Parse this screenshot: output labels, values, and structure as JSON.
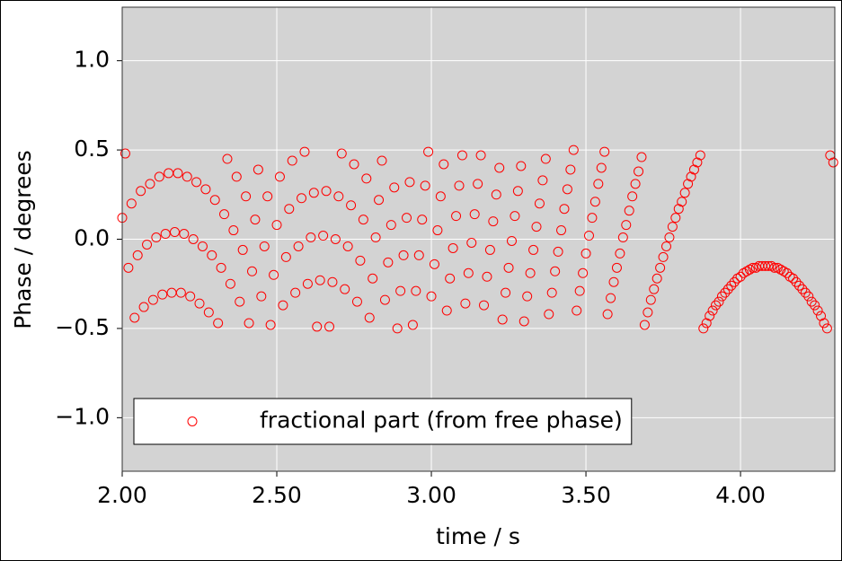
{
  "chart_data": {
    "type": "scatter",
    "xlabel": "time / s",
    "ylabel": "Phase / degrees",
    "x": [
      2,
      2.01,
      2.02,
      2.03,
      2.04,
      2.05,
      2.06,
      2.07,
      2.08,
      2.09,
      2.1,
      2.11,
      2.12,
      2.13,
      2.14,
      2.15,
      2.16,
      2.17,
      2.18,
      2.19,
      2.2,
      2.21,
      2.22,
      2.23,
      2.24,
      2.25,
      2.26,
      2.27,
      2.28,
      2.29,
      2.3,
      2.31,
      2.32,
      2.33,
      2.34,
      2.35,
      2.36,
      2.37,
      2.38,
      2.39,
      2.4,
      2.41,
      2.42,
      2.43,
      2.44,
      2.45,
      2.46,
      2.47,
      2.48,
      2.49,
      2.5,
      2.51,
      2.52,
      2.53,
      2.54,
      2.55,
      2.56,
      2.57,
      2.58,
      2.59,
      2.6,
      2.61,
      2.62,
      2.63,
      2.64,
      2.65,
      2.66,
      2.67,
      2.68,
      2.69,
      2.7,
      2.71,
      2.72,
      2.73,
      2.74,
      2.75,
      2.76,
      2.77,
      2.78,
      2.79,
      2.8,
      2.81,
      2.82,
      2.83,
      2.84,
      2.85,
      2.86,
      2.87,
      2.88,
      2.89,
      2.9,
      2.91,
      2.92,
      2.93,
      2.94,
      2.95,
      2.96,
      2.97,
      2.98,
      2.99,
      3,
      3.01,
      3.02,
      3.03,
      3.04,
      3.05,
      3.06,
      3.07,
      3.08,
      3.09,
      3.1,
      3.11,
      3.12,
      3.13,
      3.14,
      3.15,
      3.16,
      3.17,
      3.18,
      3.19,
      3.2,
      3.21,
      3.22,
      3.23,
      3.24,
      3.25,
      3.26,
      3.27,
      3.28,
      3.29,
      3.3,
      3.31,
      3.32,
      3.33,
      3.34,
      3.35,
      3.36,
      3.37,
      3.38,
      3.39,
      3.4,
      3.41,
      3.42,
      3.43,
      3.44,
      3.45,
      3.46,
      3.47,
      3.48,
      3.49,
      3.5,
      3.51,
      3.52,
      3.53,
      3.54,
      3.55,
      3.56,
      3.57,
      3.58,
      3.59,
      3.6,
      3.61,
      3.62,
      3.63,
      3.64,
      3.65,
      3.66,
      3.67,
      3.68,
      3.69,
      3.7,
      3.71,
      3.72,
      3.73,
      3.74,
      3.75,
      3.76,
      3.77,
      3.78,
      3.79,
      3.8,
      3.81,
      3.82,
      3.83,
      3.84,
      3.85,
      3.86,
      3.87,
      3.88,
      3.89,
      3.9,
      3.91,
      3.92,
      3.93,
      3.94,
      3.95,
      3.96,
      3.97,
      3.98,
      3.99,
      4,
      4.01,
      4.02,
      4.03,
      4.04,
      4.05,
      4.06,
      4.07,
      4.08,
      4.09,
      4.1,
      4.11,
      4.12,
      4.13,
      4.14,
      4.15,
      4.16,
      4.17,
      4.18,
      4.19,
      4.2,
      4.21,
      4.22,
      4.23,
      4.24,
      4.25,
      4.26,
      4.27,
      4.28,
      4.29,
      4.3
    ],
    "series": [
      {
        "name": "fractional part (from free phase)",
        "color": "#ff0000",
        "values": [
          0.12,
          0.48,
          -0.16,
          0.2,
          -0.44,
          -0.09,
          0.27,
          -0.38,
          -0.03,
          0.31,
          -0.34,
          0.01,
          0.35,
          -0.31,
          0.03,
          0.37,
          -0.3,
          0.04,
          0.37,
          -0.3,
          0.03,
          0.35,
          -0.32,
          0.0,
          0.32,
          -0.36,
          -0.04,
          0.28,
          -0.41,
          -0.09,
          0.22,
          -0.47,
          -0.16,
          0.14,
          0.45,
          -0.25,
          0.05,
          0.35,
          -0.35,
          -0.06,
          0.24,
          -0.47,
          -0.18,
          0.11,
          0.39,
          -0.32,
          -0.04,
          0.24,
          -0.48,
          -0.2,
          0.08,
          0.35,
          -0.37,
          -0.1,
          0.17,
          0.44,
          -0.3,
          -0.04,
          0.23,
          0.49,
          -0.25,
          0.01,
          0.26,
          -0.49,
          -0.23,
          0.02,
          0.27,
          -0.49,
          -0.24,
          0.0,
          0.24,
          0.48,
          -0.28,
          -0.04,
          0.19,
          0.42,
          -0.35,
          -0.12,
          0.11,
          0.34,
          -0.44,
          -0.22,
          0.01,
          0.22,
          0.44,
          -0.34,
          -0.13,
          0.08,
          0.29,
          -0.5,
          -0.29,
          -0.09,
          0.12,
          0.32,
          -0.48,
          -0.29,
          -0.09,
          0.11,
          0.3,
          0.49,
          -0.32,
          -0.14,
          0.05,
          0.24,
          0.42,
          -0.4,
          -0.22,
          -0.05,
          0.13,
          0.3,
          0.47,
          -0.36,
          -0.19,
          -0.02,
          0.14,
          0.31,
          0.47,
          -0.37,
          -0.21,
          -0.06,
          0.1,
          0.25,
          0.4,
          -0.45,
          -0.3,
          -0.16,
          -0.01,
          0.13,
          0.27,
          0.41,
          -0.46,
          -0.32,
          -0.19,
          -0.06,
          0.07,
          0.2,
          0.33,
          0.45,
          -0.42,
          -0.3,
          -0.18,
          -0.07,
          0.05,
          0.17,
          0.28,
          0.39,
          0.5,
          -0.4,
          -0.29,
          -0.19,
          -0.08,
          0.02,
          0.12,
          0.21,
          0.31,
          0.4,
          0.49,
          -0.42,
          -0.33,
          -0.24,
          -0.16,
          -0.08,
          0.01,
          0.08,
          0.16,
          0.24,
          0.31,
          0.38,
          0.46,
          -0.48,
          -0.41,
          -0.34,
          -0.28,
          -0.22,
          -0.16,
          -0.1,
          -0.04,
          0.01,
          0.07,
          0.12,
          0.17,
          0.21,
          0.26,
          0.31,
          0.35,
          0.39,
          0.43,
          0.47,
          -0.5,
          -0.47,
          -0.43,
          -0.4,
          -0.37,
          -0.35,
          -0.32,
          -0.3,
          -0.28,
          -0.26,
          -0.24,
          -0.22,
          -0.21,
          -0.19,
          -0.18,
          -0.17,
          -0.16,
          -0.16,
          -0.15,
          -0.15,
          -0.15,
          -0.15,
          -0.15,
          -0.16,
          -0.16,
          -0.17,
          -0.18,
          -0.19,
          -0.21,
          -0.22,
          -0.24,
          -0.26,
          -0.28,
          -0.3,
          -0.32,
          -0.35,
          -0.37,
          -0.4,
          -0.43,
          -0.47,
          -0.5,
          0.47,
          0.43
        ]
      }
    ],
    "xlim": [
      2.0,
      4.305
    ],
    "ylim": [
      -1.3,
      1.3
    ],
    "xticks": [
      {
        "value": 2,
        "label": "2.00"
      },
      {
        "value": 2.5,
        "label": "2.50"
      },
      {
        "value": 3,
        "label": "3.00"
      },
      {
        "value": 3.5,
        "label": "3.50"
      },
      {
        "value": 4,
        "label": "4.00"
      }
    ],
    "yticks": [
      {
        "value": -1,
        "label": "−1.0"
      },
      {
        "value": -0.5,
        "label": "−0.5"
      },
      {
        "value": 0,
        "label": "0.0"
      },
      {
        "value": 0.5,
        "label": "0.5"
      },
      {
        "value": 1,
        "label": "1.0"
      }
    ],
    "grid": true,
    "legend": "lower left",
    "marker": "open-circle",
    "background": "#d3d3d3"
  }
}
